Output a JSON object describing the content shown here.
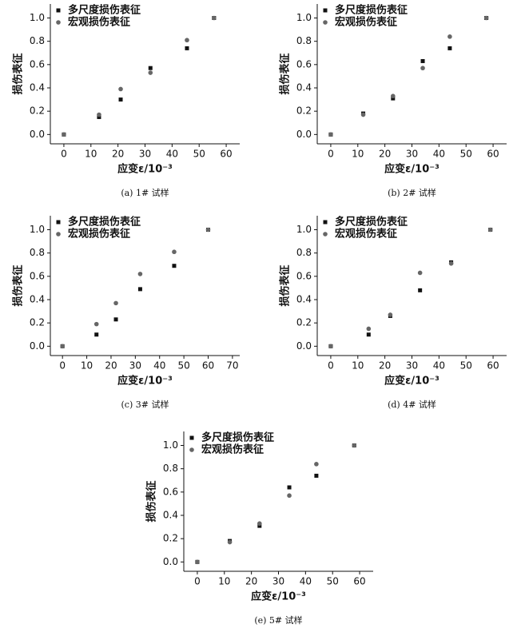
{
  "chart_data": [
    {
      "type": "scatter",
      "caption": "(a) 1# 试样",
      "xlabel": "应变ε/10⁻³",
      "ylabel": "损伤表征",
      "legend": "upper left",
      "x": [
        0,
        13,
        21,
        32,
        45.5,
        55.5
      ],
      "xlim": [
        -5,
        65
      ],
      "xticks": [
        0,
        10,
        20,
        30,
        40,
        50,
        60
      ],
      "ylim": [
        -0.08,
        1.12
      ],
      "yticks": [
        {
          "value": 0,
          "label": "0.0"
        },
        {
          "value": 0.2,
          "label": "0.2"
        },
        {
          "value": 0.4,
          "label": "0.4"
        },
        {
          "value": 0.6,
          "label": "0.6"
        },
        {
          "value": 0.8,
          "label": "0.8"
        },
        {
          "value": 1,
          "label": "1.0"
        }
      ],
      "series": [
        {
          "name": "多尺度损伤表征",
          "color": "#111111",
          "marker": "square",
          "values": [
            0,
            0.15,
            0.3,
            0.57,
            0.74,
            1.0
          ]
        },
        {
          "name": "宏观损伤表征",
          "color": "#666666",
          "marker": "circle",
          "values": [
            0,
            0.17,
            0.39,
            0.53,
            0.81,
            1.0
          ]
        }
      ]
    },
    {
      "type": "scatter",
      "caption": "(b) 2# 试样",
      "xlabel": "应变ε/10⁻³",
      "ylabel": "损伤表征",
      "legend": "upper left",
      "x": [
        0,
        12,
        23,
        34,
        44,
        57.5
      ],
      "xlim": [
        -5,
        65
      ],
      "xticks": [
        0,
        10,
        20,
        30,
        40,
        50,
        60
      ],
      "ylim": [
        -0.08,
        1.12
      ],
      "yticks": [
        {
          "value": 0,
          "label": "0.0"
        },
        {
          "value": 0.2,
          "label": "0.2"
        },
        {
          "value": 0.4,
          "label": "0.4"
        },
        {
          "value": 0.6,
          "label": "0.6"
        },
        {
          "value": 0.8,
          "label": "0.8"
        },
        {
          "value": 1,
          "label": "1.0"
        }
      ],
      "series": [
        {
          "name": "多尺度损伤表征",
          "color": "#111111",
          "marker": "square",
          "values": [
            0,
            0.18,
            0.31,
            0.63,
            0.74,
            1.0
          ]
        },
        {
          "name": "宏观损伤表征",
          "color": "#666666",
          "marker": "circle",
          "values": [
            0,
            0.17,
            0.33,
            0.57,
            0.84,
            1.0
          ]
        }
      ]
    },
    {
      "type": "scatter",
      "caption": "(c) 3# 试样",
      "xlabel": "应变ε/10⁻³",
      "ylabel": "损伤表征",
      "legend": "upper left",
      "x": [
        0,
        14,
        22,
        32,
        46,
        60
      ],
      "xlim": [
        -5,
        73
      ],
      "xticks": [
        0,
        10,
        20,
        30,
        40,
        50,
        60,
        70
      ],
      "ylim": [
        -0.08,
        1.12
      ],
      "yticks": [
        {
          "value": 0,
          "label": "0.0"
        },
        {
          "value": 0.2,
          "label": "0.2"
        },
        {
          "value": 0.4,
          "label": "0.4"
        },
        {
          "value": 0.6,
          "label": "0.6"
        },
        {
          "value": 0.8,
          "label": "0.8"
        },
        {
          "value": 1,
          "label": "1.0"
        }
      ],
      "series": [
        {
          "name": "多尺度损伤表征",
          "color": "#111111",
          "marker": "square",
          "values": [
            0,
            0.1,
            0.23,
            0.49,
            0.69,
            1.0
          ]
        },
        {
          "name": "宏观损伤表征",
          "color": "#666666",
          "marker": "circle",
          "values": [
            0,
            0.19,
            0.37,
            0.62,
            0.81,
            1.0
          ]
        }
      ]
    },
    {
      "type": "scatter",
      "caption": "(d) 4# 试样",
      "xlabel": "应变ε/10⁻³",
      "ylabel": "损伤表征",
      "legend": "upper left",
      "x": [
        0,
        14,
        22,
        33,
        44.5,
        59
      ],
      "xlim": [
        -5,
        65
      ],
      "xticks": [
        0,
        10,
        20,
        30,
        40,
        50,
        60
      ],
      "ylim": [
        -0.08,
        1.12
      ],
      "yticks": [
        {
          "value": 0,
          "label": "0.0"
        },
        {
          "value": 0.2,
          "label": "0.2"
        },
        {
          "value": 0.4,
          "label": "0.4"
        },
        {
          "value": 0.6,
          "label": "0.6"
        },
        {
          "value": 0.8,
          "label": "0.8"
        },
        {
          "value": 1,
          "label": "1.0"
        }
      ],
      "series": [
        {
          "name": "多尺度损伤表征",
          "color": "#111111",
          "marker": "square",
          "values": [
            0,
            0.1,
            0.26,
            0.48,
            0.72,
            1.0
          ]
        },
        {
          "name": "宏观损伤表征",
          "color": "#666666",
          "marker": "circle",
          "values": [
            0,
            0.15,
            0.27,
            0.63,
            0.71,
            1.0
          ]
        }
      ]
    },
    {
      "type": "scatter",
      "caption": "(e) 5# 试样",
      "xlabel": "应变ε/10⁻³",
      "ylabel": "损伤表征",
      "legend": "upper left",
      "x": [
        0,
        12,
        23,
        34,
        44,
        58
      ],
      "xlim": [
        -5,
        65
      ],
      "xticks": [
        0,
        10,
        20,
        30,
        40,
        50,
        60
      ],
      "ylim": [
        -0.08,
        1.12
      ],
      "yticks": [
        {
          "value": 0,
          "label": "0.0"
        },
        {
          "value": 0.2,
          "label": "0.2"
        },
        {
          "value": 0.4,
          "label": "0.4"
        },
        {
          "value": 0.6,
          "label": "0.6"
        },
        {
          "value": 0.8,
          "label": "0.8"
        },
        {
          "value": 1,
          "label": "1.0"
        }
      ],
      "series": [
        {
          "name": "多尺度损伤表征",
          "color": "#111111",
          "marker": "square",
          "values": [
            0,
            0.18,
            0.31,
            0.64,
            0.74,
            1.0
          ]
        },
        {
          "name": "宏观损伤表征",
          "color": "#666666",
          "marker": "circle",
          "values": [
            0,
            0.17,
            0.33,
            0.57,
            0.84,
            1.0
          ]
        }
      ]
    }
  ]
}
